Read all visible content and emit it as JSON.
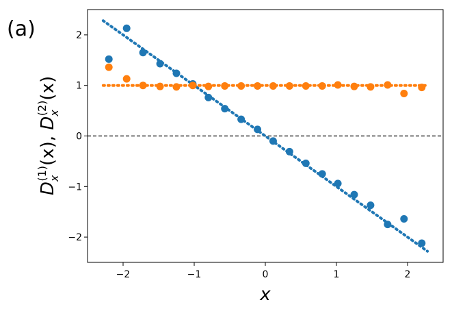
{
  "panel_label": "(a)",
  "colors": {
    "series1": "#1f77b4",
    "series2": "#ff7f0e",
    "zero_line": "#000000",
    "axes": "#000000"
  },
  "chart_data": {
    "type": "scatter",
    "title": "",
    "xlabel": "x",
    "ylabel_parts": {
      "d1_main": "D",
      "d1_sub": "x",
      "d1_sup": "(1)",
      "d1_arg": "(x), ",
      "d2_main": "D",
      "d2_sub": "x",
      "d2_sup": "(2)",
      "d2_arg": "(x)"
    },
    "xlim": [
      -2.5,
      2.5
    ],
    "ylim": [
      -2.5,
      2.5
    ],
    "xticks": [
      -2,
      -1,
      0,
      1,
      2
    ],
    "yticks": [
      -2,
      -1,
      0,
      1,
      2
    ],
    "xtick_labels": [
      "−2",
      "−1",
      "0",
      "1",
      "2"
    ],
    "ytick_labels": [
      "−2",
      "−1",
      "0",
      "1",
      "2"
    ],
    "grid": false,
    "legend": "none",
    "series": [
      {
        "color_key": "series1",
        "x": [
          -2.2,
          -1.95,
          -1.72,
          -1.48,
          -1.25,
          -1.02,
          -0.8,
          -0.57,
          -0.34,
          -0.11,
          0.11,
          0.34,
          0.57,
          0.8,
          1.02,
          1.25,
          1.48,
          1.72,
          1.95,
          2.2
        ],
        "y": [
          1.52,
          2.13,
          1.65,
          1.43,
          1.24,
          1.03,
          0.76,
          0.54,
          0.33,
          0.13,
          -0.1,
          -0.31,
          -0.54,
          -0.75,
          -0.94,
          -1.16,
          -1.37,
          -1.75,
          -1.64,
          -2.12
        ]
      },
      {
        "color_key": "series2",
        "x": [
          -2.2,
          -1.95,
          -1.72,
          -1.48,
          -1.25,
          -1.02,
          -0.8,
          -0.57,
          -0.34,
          -0.11,
          0.11,
          0.34,
          0.57,
          0.8,
          1.02,
          1.25,
          1.48,
          1.72,
          1.95,
          2.2
        ],
        "y": [
          1.36,
          1.13,
          1.0,
          0.98,
          0.97,
          1.0,
          0.98,
          0.99,
          0.99,
          0.99,
          0.99,
          0.99,
          0.99,
          0.99,
          1.01,
          0.98,
          0.97,
          1.01,
          0.84,
          0.96
        ]
      }
    ],
    "fit_lines": [
      {
        "color_key": "series1",
        "style": "dotted",
        "x": [
          -2.28,
          2.28
        ],
        "y": [
          2.28,
          -2.28
        ]
      },
      {
        "color_key": "series2",
        "style": "dotted",
        "x": [
          -2.28,
          2.28
        ],
        "y": [
          1.0,
          1.0
        ]
      }
    ],
    "reference_lines": [
      {
        "type": "horizontal",
        "y": 0,
        "style": "dashed",
        "color_key": "zero_line"
      }
    ]
  }
}
